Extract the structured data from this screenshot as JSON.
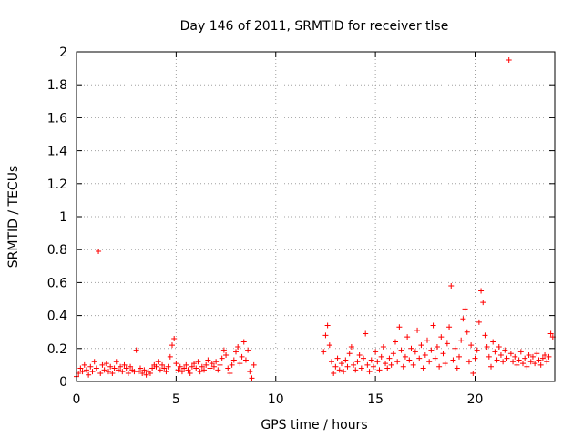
{
  "chart_data": {
    "type": "scatter",
    "title": "Day 146 of 2011, SRMTID for receiver tlse",
    "xlabel": "GPS time / hours",
    "ylabel": "SRMTID / TECUs",
    "xlim": [
      0,
      24
    ],
    "ylim": [
      0,
      2
    ],
    "xticks": [
      0,
      5,
      10,
      15,
      20
    ],
    "yticks": [
      0,
      0.2,
      0.4,
      0.6,
      0.8,
      1,
      1.2,
      1.4,
      1.6,
      1.8,
      2
    ],
    "xtick_labels": [
      "0",
      "5",
      "10",
      "15",
      "20"
    ],
    "ytick_labels": [
      "0",
      "0.2",
      "0.4",
      "0.6",
      "0.8",
      "1",
      "1.2",
      "1.4",
      "1.6",
      "1.8",
      "2"
    ],
    "grid": true,
    "marker": "+",
    "color": "#ff0000",
    "points": [
      [
        0.0,
        0.03
      ],
      [
        0.1,
        0.05
      ],
      [
        0.2,
        0.08
      ],
      [
        0.3,
        0.06
      ],
      [
        0.4,
        0.1
      ],
      [
        0.5,
        0.07
      ],
      [
        0.6,
        0.04
      ],
      [
        0.7,
        0.09
      ],
      [
        0.8,
        0.06
      ],
      [
        0.9,
        0.12
      ],
      [
        1.0,
        0.08
      ],
      [
        1.1,
        0.79
      ],
      [
        1.2,
        0.05
      ],
      [
        1.3,
        0.1
      ],
      [
        1.4,
        0.07
      ],
      [
        1.5,
        0.11
      ],
      [
        1.6,
        0.06
      ],
      [
        1.7,
        0.09
      ],
      [
        1.8,
        0.05
      ],
      [
        1.9,
        0.08
      ],
      [
        2.0,
        0.12
      ],
      [
        2.1,
        0.07
      ],
      [
        2.2,
        0.09
      ],
      [
        2.3,
        0.06
      ],
      [
        2.4,
        0.1
      ],
      [
        2.5,
        0.08
      ],
      [
        2.6,
        0.05
      ],
      [
        2.7,
        0.09
      ],
      [
        2.8,
        0.07
      ],
      [
        2.9,
        0.06
      ],
      [
        3.0,
        0.19
      ],
      [
        3.1,
        0.06
      ],
      [
        3.2,
        0.08
      ],
      [
        3.3,
        0.05
      ],
      [
        3.4,
        0.07
      ],
      [
        3.5,
        0.04
      ],
      [
        3.6,
        0.06
      ],
      [
        3.7,
        0.05
      ],
      [
        3.8,
        0.08
      ],
      [
        3.9,
        0.1
      ],
      [
        4.0,
        0.09
      ],
      [
        4.1,
        0.12
      ],
      [
        4.2,
        0.07
      ],
      [
        4.3,
        0.1
      ],
      [
        4.4,
        0.08
      ],
      [
        4.5,
        0.06
      ],
      [
        4.6,
        0.09
      ],
      [
        4.7,
        0.15
      ],
      [
        4.8,
        0.22
      ],
      [
        4.9,
        0.26
      ],
      [
        5.0,
        0.11
      ],
      [
        5.1,
        0.07
      ],
      [
        5.2,
        0.09
      ],
      [
        5.3,
        0.06
      ],
      [
        5.4,
        0.08
      ],
      [
        5.5,
        0.1
      ],
      [
        5.6,
        0.07
      ],
      [
        5.7,
        0.05
      ],
      [
        5.8,
        0.09
      ],
      [
        5.9,
        0.11
      ],
      [
        6.0,
        0.08
      ],
      [
        6.1,
        0.12
      ],
      [
        6.2,
        0.06
      ],
      [
        6.3,
        0.09
      ],
      [
        6.4,
        0.07
      ],
      [
        6.5,
        0.1
      ],
      [
        6.6,
        0.13
      ],
      [
        6.7,
        0.08
      ],
      [
        6.8,
        0.11
      ],
      [
        6.9,
        0.09
      ],
      [
        7.0,
        0.12
      ],
      [
        7.1,
        0.07
      ],
      [
        7.2,
        0.1
      ],
      [
        7.3,
        0.14
      ],
      [
        7.4,
        0.19
      ],
      [
        7.5,
        0.16
      ],
      [
        7.6,
        0.08
      ],
      [
        7.7,
        0.05
      ],
      [
        7.8,
        0.1
      ],
      [
        7.9,
        0.13
      ],
      [
        8.0,
        0.18
      ],
      [
        8.1,
        0.21
      ],
      [
        8.2,
        0.11
      ],
      [
        8.3,
        0.15
      ],
      [
        8.4,
        0.24
      ],
      [
        8.5,
        0.13
      ],
      [
        8.6,
        0.19
      ],
      [
        8.7,
        0.06
      ],
      [
        8.8,
        0.02
      ],
      [
        8.9,
        0.1
      ],
      [
        12.4,
        0.18
      ],
      [
        12.5,
        0.28
      ],
      [
        12.6,
        0.34
      ],
      [
        12.7,
        0.22
      ],
      [
        12.8,
        0.12
      ],
      [
        12.9,
        0.05
      ],
      [
        13.0,
        0.09
      ],
      [
        13.1,
        0.14
      ],
      [
        13.2,
        0.07
      ],
      [
        13.3,
        0.11
      ],
      [
        13.4,
        0.06
      ],
      [
        13.5,
        0.13
      ],
      [
        13.6,
        0.09
      ],
      [
        13.7,
        0.17
      ],
      [
        13.8,
        0.21
      ],
      [
        13.9,
        0.1
      ],
      [
        14.0,
        0.07
      ],
      [
        14.1,
        0.12
      ],
      [
        14.2,
        0.16
      ],
      [
        14.3,
        0.08
      ],
      [
        14.4,
        0.14
      ],
      [
        14.5,
        0.29
      ],
      [
        14.6,
        0.1
      ],
      [
        14.7,
        0.06
      ],
      [
        14.8,
        0.13
      ],
      [
        14.9,
        0.09
      ],
      [
        15.0,
        0.18
      ],
      [
        15.1,
        0.12
      ],
      [
        15.2,
        0.07
      ],
      [
        15.3,
        0.15
      ],
      [
        15.4,
        0.21
      ],
      [
        15.5,
        0.11
      ],
      [
        15.6,
        0.08
      ],
      [
        15.7,
        0.14
      ],
      [
        15.8,
        0.1
      ],
      [
        15.9,
        0.17
      ],
      [
        16.0,
        0.24
      ],
      [
        16.1,
        0.12
      ],
      [
        16.2,
        0.33
      ],
      [
        16.3,
        0.19
      ],
      [
        16.4,
        0.09
      ],
      [
        16.5,
        0.15
      ],
      [
        16.6,
        0.27
      ],
      [
        16.7,
        0.13
      ],
      [
        16.8,
        0.2
      ],
      [
        16.9,
        0.1
      ],
      [
        17.0,
        0.18
      ],
      [
        17.1,
        0.31
      ],
      [
        17.2,
        0.14
      ],
      [
        17.3,
        0.22
      ],
      [
        17.4,
        0.08
      ],
      [
        17.5,
        0.16
      ],
      [
        17.6,
        0.25
      ],
      [
        17.7,
        0.12
      ],
      [
        17.8,
        0.19
      ],
      [
        17.9,
        0.34
      ],
      [
        18.0,
        0.14
      ],
      [
        18.1,
        0.21
      ],
      [
        18.2,
        0.09
      ],
      [
        18.3,
        0.27
      ],
      [
        18.4,
        0.17
      ],
      [
        18.5,
        0.11
      ],
      [
        18.6,
        0.23
      ],
      [
        18.7,
        0.33
      ],
      [
        18.8,
        0.58
      ],
      [
        18.9,
        0.13
      ],
      [
        19.0,
        0.2
      ],
      [
        19.1,
        0.08
      ],
      [
        19.2,
        0.15
      ],
      [
        19.3,
        0.25
      ],
      [
        19.4,
        0.38
      ],
      [
        19.5,
        0.44
      ],
      [
        19.6,
        0.3
      ],
      [
        19.7,
        0.12
      ],
      [
        19.8,
        0.22
      ],
      [
        19.9,
        0.05
      ],
      [
        20.0,
        0.14
      ],
      [
        20.1,
        0.19
      ],
      [
        20.2,
        0.36
      ],
      [
        20.3,
        0.55
      ],
      [
        20.4,
        0.48
      ],
      [
        20.5,
        0.28
      ],
      [
        20.6,
        0.21
      ],
      [
        20.7,
        0.15
      ],
      [
        20.8,
        0.09
      ],
      [
        20.9,
        0.24
      ],
      [
        21.0,
        0.18
      ],
      [
        21.1,
        0.13
      ],
      [
        21.2,
        0.21
      ],
      [
        21.3,
        0.16
      ],
      [
        21.4,
        0.12
      ],
      [
        21.5,
        0.19
      ],
      [
        21.6,
        0.14
      ],
      [
        21.7,
        1.95
      ],
      [
        21.8,
        0.17
      ],
      [
        21.9,
        0.12
      ],
      [
        22.0,
        0.15
      ],
      [
        22.1,
        0.1
      ],
      [
        22.2,
        0.13
      ],
      [
        22.3,
        0.18
      ],
      [
        22.4,
        0.11
      ],
      [
        22.5,
        0.14
      ],
      [
        22.6,
        0.09
      ],
      [
        22.7,
        0.16
      ],
      [
        22.8,
        0.12
      ],
      [
        22.9,
        0.15
      ],
      [
        23.0,
        0.11
      ],
      [
        23.1,
        0.17
      ],
      [
        23.2,
        0.13
      ],
      [
        23.3,
        0.1
      ],
      [
        23.4,
        0.14
      ],
      [
        23.5,
        0.16
      ],
      [
        23.6,
        0.12
      ],
      [
        23.7,
        0.15
      ],
      [
        23.8,
        0.29
      ],
      [
        23.9,
        0.27
      ]
    ]
  }
}
